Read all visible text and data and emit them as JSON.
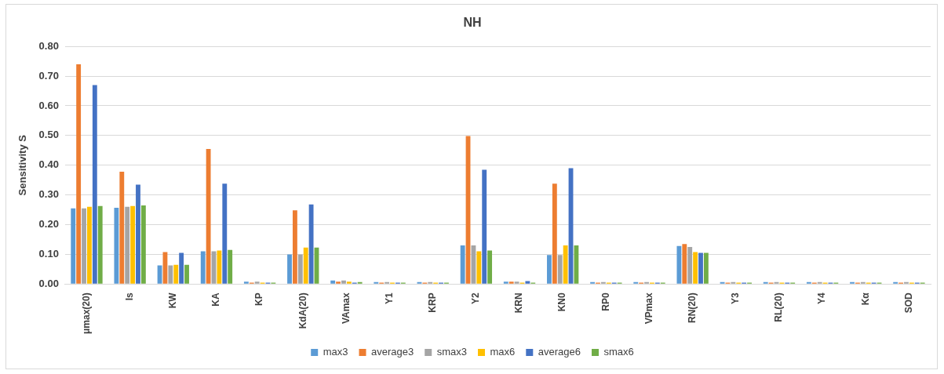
{
  "chart_data": {
    "type": "bar",
    "title": "NH",
    "ylabel": "Sensitivity S",
    "categories": [
      "μmax(20)",
      "Is",
      "KW",
      "KA",
      "KP",
      "KdA(20)",
      "VAmax",
      "Y1",
      "KRP",
      "Y2",
      "KRN",
      "KN0",
      "RP0",
      "VPmax",
      "RN(20)",
      "Y3",
      "RL(20)",
      "Y4",
      "Kα",
      "SOD"
    ],
    "series": [
      {
        "name": "max3",
        "color": "#5b9bd5",
        "values": [
          0.255,
          0.257,
          0.063,
          0.11,
          0.008,
          0.1,
          0.012,
          0.007,
          0.007,
          0.13,
          0.008,
          0.098,
          0.007,
          0.007,
          0.128,
          0.007,
          0.007,
          0.007,
          0.007,
          0.007
        ]
      },
      {
        "name": "average3",
        "color": "#ed7d31",
        "values": [
          0.74,
          0.378,
          0.108,
          0.455,
          0.005,
          0.248,
          0.008,
          0.005,
          0.005,
          0.498,
          0.008,
          0.338,
          0.005,
          0.005,
          0.135,
          0.005,
          0.005,
          0.005,
          0.005,
          0.005
        ]
      },
      {
        "name": "smax3",
        "color": "#a5a5a5",
        "values": [
          0.255,
          0.26,
          0.063,
          0.11,
          0.008,
          0.1,
          0.012,
          0.007,
          0.007,
          0.13,
          0.008,
          0.098,
          0.007,
          0.007,
          0.125,
          0.007,
          0.007,
          0.007,
          0.007,
          0.007
        ]
      },
      {
        "name": "max6",
        "color": "#ffc000",
        "values": [
          0.26,
          0.263,
          0.065,
          0.113,
          0.005,
          0.123,
          0.008,
          0.005,
          0.005,
          0.11,
          0.005,
          0.13,
          0.005,
          0.005,
          0.108,
          0.005,
          0.005,
          0.005,
          0.005,
          0.005
        ]
      },
      {
        "name": "average6",
        "color": "#4472c4",
        "values": [
          0.67,
          0.335,
          0.105,
          0.338,
          0.005,
          0.268,
          0.005,
          0.005,
          0.005,
          0.385,
          0.01,
          0.39,
          0.005,
          0.005,
          0.105,
          0.005,
          0.005,
          0.005,
          0.005,
          0.005
        ]
      },
      {
        "name": "smax6",
        "color": "#70ad47",
        "values": [
          0.263,
          0.265,
          0.065,
          0.115,
          0.005,
          0.123,
          0.007,
          0.005,
          0.005,
          0.113,
          0.005,
          0.13,
          0.005,
          0.005,
          0.105,
          0.005,
          0.005,
          0.005,
          0.005,
          0.005
        ]
      }
    ],
    "ylim": [
      0,
      0.8
    ],
    "yticks": [
      {
        "value": 0,
        "label": "0.00"
      },
      {
        "value": 0.1,
        "label": "0.10"
      },
      {
        "value": 0.2,
        "label": "0.20"
      },
      {
        "value": 0.3,
        "label": "0.30"
      },
      {
        "value": 0.4,
        "label": "0.40"
      },
      {
        "value": 0.5,
        "label": "0.50"
      },
      {
        "value": 0.6,
        "label": "0.60"
      },
      {
        "value": 0.7,
        "label": "0.70"
      },
      {
        "value": 0.8,
        "label": "0.80"
      }
    ],
    "grid": "y",
    "legend": "bottom"
  }
}
